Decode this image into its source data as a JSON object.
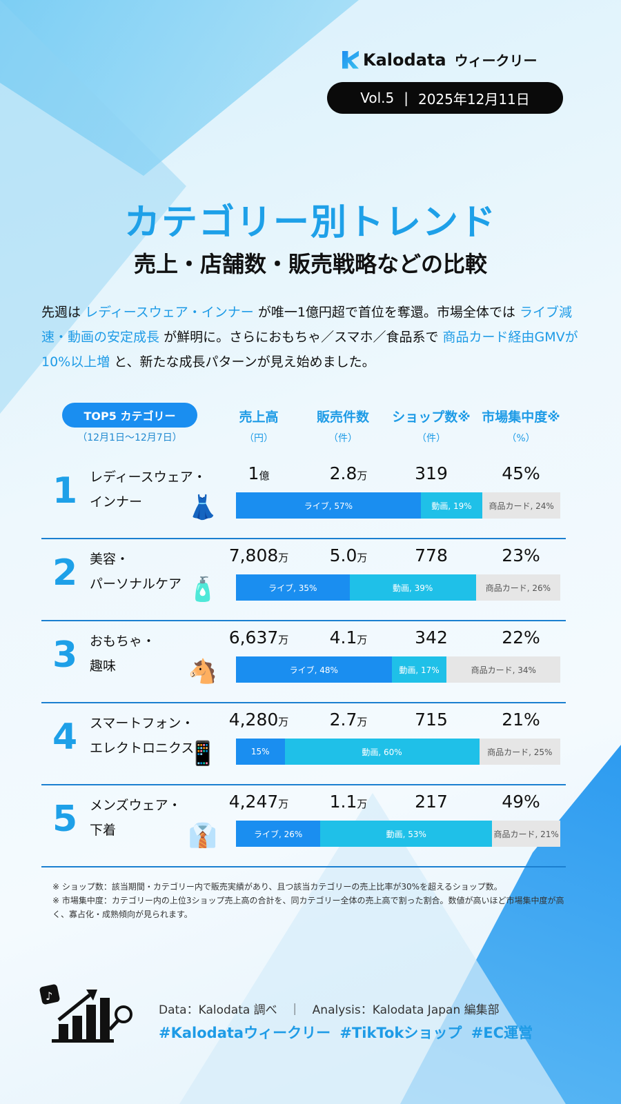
{
  "brand": {
    "name": "Kalodata",
    "series": "ウィークリー"
  },
  "issue": {
    "vol": "Vol.5",
    "separator": "|",
    "date": "2025年12月11日"
  },
  "title": "カテゴリー別トレンド",
  "subtitle": "売上・店舗数・販売戦略などの比較",
  "intro": {
    "p1": "先週は",
    "h1": "レディースウェア・インナー",
    "p2": "が唯一1億円超で首位を奪還。市場全体では",
    "h2": "ライブ減速・動画の安定成長",
    "p3": "が鮮明に。さらにおもちゃ／スマホ／食品系で",
    "h3": "商品カード経由GMVが10%以上増",
    "p4": "と、新たな成長パターンが見え始めました。"
  },
  "table": {
    "badge": "TOP5 カテゴリー",
    "period": "（12月1日～12月7日）",
    "columns": [
      {
        "label": "売上高",
        "unit": "（円）"
      },
      {
        "label": "販売件数",
        "unit": "（件）"
      },
      {
        "label": "ショップ数※",
        "unit": "（件）"
      },
      {
        "label": "市場集中度※",
        "unit": "（%）"
      }
    ],
    "rows": [
      {
        "rank": "1",
        "name1": "レディースウェア・",
        "name2": "インナー",
        "icon": "dress-icon",
        "sales": "1",
        "sales_unit": "億",
        "count": "2.8",
        "count_unit": "万",
        "shops": "319",
        "conc": "45%",
        "live": 57,
        "video": 19,
        "card": 24,
        "live_label": "ライブ, 57%",
        "video_label": "動画, 19%",
        "card_label": "商品カード, 24%"
      },
      {
        "rank": "2",
        "name1": "美容・",
        "name2": "パーソナルケア",
        "icon": "cosmetics-icon",
        "sales": "7,808",
        "sales_unit": "万",
        "count": "5.0",
        "count_unit": "万",
        "shops": "778",
        "conc": "23%",
        "live": 35,
        "video": 39,
        "card": 26,
        "live_label": "ライブ, 35%",
        "video_label": "動画, 39%",
        "card_label": "商品カード, 26%"
      },
      {
        "rank": "3",
        "name1": "おもちゃ・",
        "name2": "趣味",
        "icon": "rocking-horse-icon",
        "sales": "6,637",
        "sales_unit": "万",
        "count": "4.1",
        "count_unit": "万",
        "shops": "342",
        "conc": "22%",
        "live": 48,
        "video": 17,
        "card": 34,
        "live_label": "ライブ, 48%",
        "video_label": "動画, 17%",
        "card_label": "商品カード, 34%"
      },
      {
        "rank": "4",
        "name1": "スマートフォン・",
        "name2": "エレクトロニクス",
        "icon": "smartphone-icon",
        "sales": "4,280",
        "sales_unit": "万",
        "count": "2.7",
        "count_unit": "万",
        "shops": "715",
        "conc": "21%",
        "live": 15,
        "video": 60,
        "card": 25,
        "live_label": "15%",
        "video_label": "動画, 60%",
        "card_label": "商品カード, 25%"
      },
      {
        "rank": "5",
        "name1": "メンズウェア・",
        "name2": "下着",
        "icon": "shirt-icon",
        "sales": "4,247",
        "sales_unit": "万",
        "count": "1.1",
        "count_unit": "万",
        "shops": "217",
        "conc": "49%",
        "live": 26,
        "video": 53,
        "card": 21,
        "live_label": "ライブ, 26%",
        "video_label": "動画, 53%",
        "card_label": "商品カード, 21%"
      }
    ]
  },
  "notes": [
    "※ ショップ数：該当期間・カテゴリー内で販売実績があり、且つ該当カテゴリーの売上比率が30%を超えるショップ数。",
    "※ 市場集中度：カテゴリー内の上位3ショップ売上高の合計を、同カテゴリー全体の売上高で割った割合。数値が高いほど市場集中度が高く、寡占化・成熟傾向が見られます。"
  ],
  "footer": {
    "credit": "Data：Kalodata 調べ　｜　Analysis：Kalodata Japan 編集部",
    "tags": "#Kalodataウィークリー #TikTokショップ #EC運営"
  },
  "colors": {
    "live": "#1a8ef0",
    "video": "#1fc0e8",
    "card": "#e6e6e6",
    "accent": "#1ea0e8"
  },
  "chart_data": {
    "type": "bar",
    "stacked": true,
    "orientation": "horizontal",
    "categories": [
      "レディースウェア・インナー",
      "美容・パーソナルケア",
      "おもちゃ・趣味",
      "スマートフォン・エレクトロニクス",
      "メンズウェア・下着"
    ],
    "series": [
      {
        "name": "ライブ",
        "values": [
          57,
          35,
          48,
          15,
          26
        ]
      },
      {
        "name": "動画",
        "values": [
          19,
          39,
          17,
          60,
          53
        ]
      },
      {
        "name": "商品カード",
        "values": [
          24,
          26,
          34,
          25,
          21
        ]
      }
    ],
    "xlim": [
      0,
      100
    ]
  }
}
